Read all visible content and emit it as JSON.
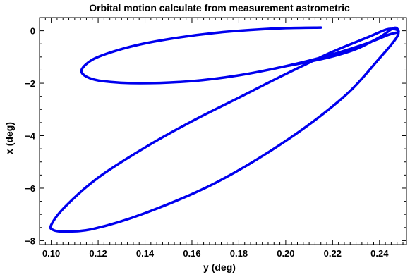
{
  "chart_data": {
    "type": "line",
    "title": "Orbital motion calculate from measurement astrometric",
    "xlabel": "y (deg)",
    "ylabel": "x (deg)",
    "xlim": [
      0.095,
      0.2515
    ],
    "ylim": [
      -8.15,
      0.5
    ],
    "grid": false,
    "x_ticks": [
      0.1,
      0.12,
      0.14,
      0.16,
      0.18,
      0.2,
      0.22,
      0.24
    ],
    "x_tick_labels": [
      "0.10",
      "0.12",
      "0.14",
      "0.16",
      "0.18",
      "0.20",
      "0.22",
      "0.24"
    ],
    "y_ticks": [
      0,
      -2,
      -4,
      -6,
      -8
    ],
    "y_tick_labels": [
      "0",
      "−2",
      "−4",
      "−6",
      "−8"
    ],
    "series": [
      {
        "color": "#0000ee",
        "x": [
          0.215,
          0.2,
          0.185,
          0.17,
          0.155,
          0.14,
          0.128,
          0.118,
          0.113,
          0.115,
          0.122,
          0.138,
          0.16,
          0.18,
          0.2,
          0.218,
          0.234,
          0.244,
          0.248,
          0.247,
          0.243,
          0.235,
          0.22,
          0.2,
          0.18,
          0.16,
          0.14,
          0.12,
          0.106,
          0.1,
          0.101,
          0.106,
          0.118,
          0.14,
          0.17,
          0.2,
          0.225,
          0.24,
          0.247,
          0.248,
          0.246,
          0.24,
          0.23,
          0.22,
          0.21,
          0.2
        ],
        "y": [
          0.12,
          0.1,
          0.03,
          -0.08,
          -0.25,
          -0.48,
          -0.75,
          -1.08,
          -1.48,
          -1.75,
          -1.92,
          -2.0,
          -1.92,
          -1.7,
          -1.35,
          -0.95,
          -0.5,
          -0.15,
          -0.05,
          0.05,
          0.05,
          -0.25,
          -0.8,
          -1.65,
          -2.55,
          -3.45,
          -4.45,
          -5.6,
          -6.7,
          -7.4,
          -7.6,
          -7.65,
          -7.55,
          -6.95,
          -5.8,
          -4.2,
          -2.5,
          -1.05,
          -0.3,
          0.0,
          0.1,
          -0.25,
          -0.7,
          -0.98,
          -1.18,
          -1.35
        ]
      }
    ]
  }
}
